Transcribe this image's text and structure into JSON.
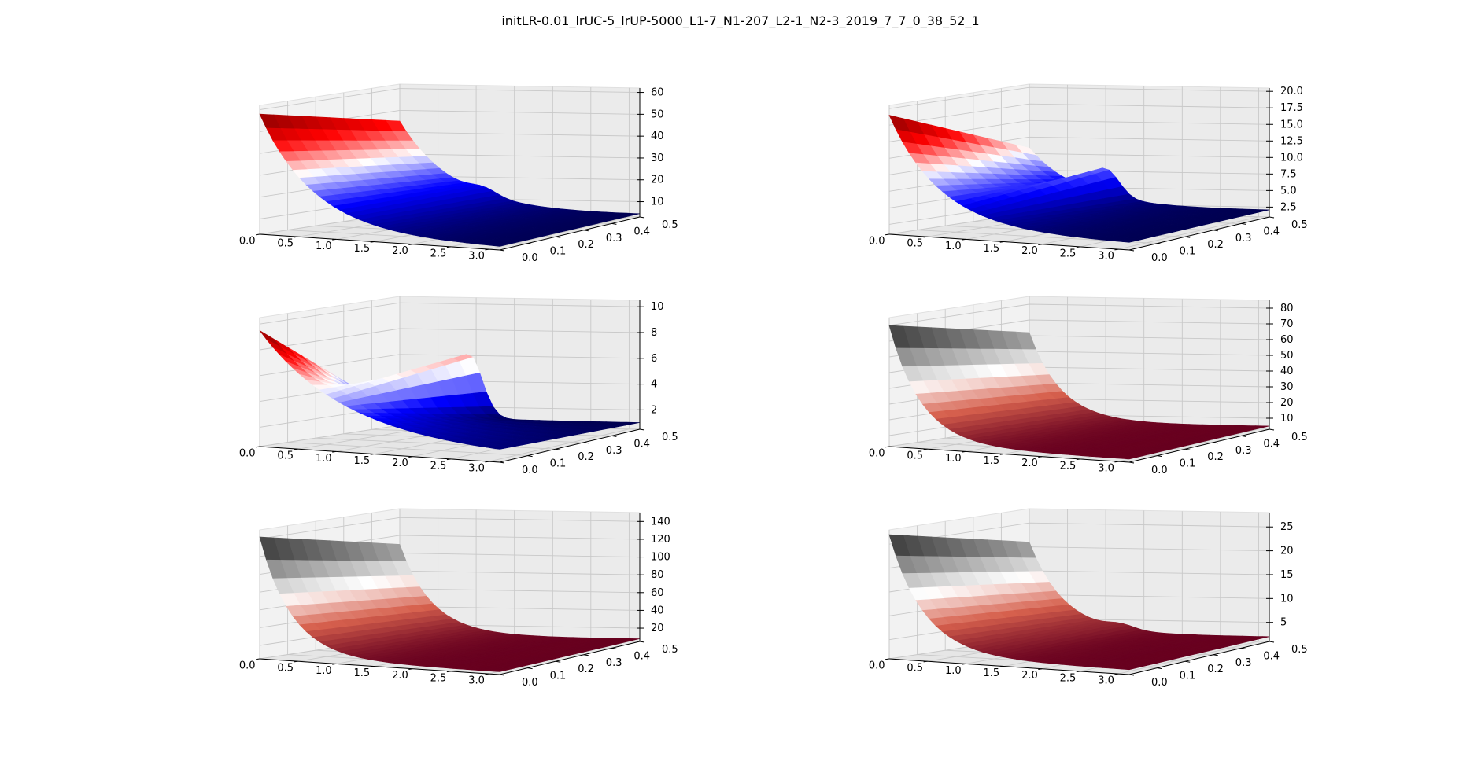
{
  "figure": {
    "title": "initLR-0.01_lrUC-5_lrUP-5000_L1-7_N1-207_L2-1_N2-3_2019_7_7_0_38_52_1"
  },
  "chart_data": [
    {
      "type": "surface3d",
      "id": "row1-left",
      "colormap": "seismic",
      "x_ticks": [
        "0.0",
        "0.5",
        "1.0",
        "1.5",
        "2.0",
        "2.5",
        "3.0"
      ],
      "y_ticks": [
        "0.0",
        "0.1",
        "0.2",
        "0.3",
        "0.4",
        "0.5"
      ],
      "z_ticks": [
        "10",
        "20",
        "30",
        "40",
        "50",
        "60"
      ],
      "xlim": [
        0,
        3.14
      ],
      "ylim": [
        0,
        0.5
      ],
      "zlim": [
        3,
        62
      ],
      "surface": {
        "peak": 58,
        "base": 4,
        "decay": 1.4,
        "y_effect": 0.3,
        "bump_x": 1.1,
        "bump_height": 3
      }
    },
    {
      "type": "surface3d",
      "id": "row1-right",
      "colormap": "seismic",
      "x_ticks": [
        "0.0",
        "0.5",
        "1.0",
        "1.5",
        "2.0",
        "2.5",
        "3.0"
      ],
      "y_ticks": [
        "0.0",
        "0.1",
        "0.2",
        "0.3",
        "0.4",
        "0.5"
      ],
      "z_ticks": [
        "2.5",
        "5.0",
        "7.5",
        "10.0",
        "12.5",
        "15.0",
        "17.5",
        "20.0"
      ],
      "xlim": [
        0,
        3.14
      ],
      "ylim": [
        0,
        0.5
      ],
      "zlim": [
        1,
        20.5
      ],
      "surface": {
        "peak": 19,
        "base": 2,
        "decay": 1.5,
        "y_effect": 0.6,
        "bump_x": 1.0,
        "bump_height": 4
      }
    },
    {
      "type": "surface3d",
      "id": "row2-left",
      "colormap": "seismic",
      "x_ticks": [
        "0.0",
        "0.5",
        "1.0",
        "1.5",
        "2.0",
        "2.5",
        "3.0"
      ],
      "y_ticks": [
        "0.0",
        "0.1",
        "0.2",
        "0.3",
        "0.4",
        "0.5"
      ],
      "z_ticks": [
        "2",
        "4",
        "6",
        "8",
        "10"
      ],
      "xlim": [
        0,
        3.14
      ],
      "ylim": [
        0,
        0.5
      ],
      "zlim": [
        0.5,
        10.5
      ],
      "surface": {
        "peak": 9.5,
        "base": 1,
        "decay": 0.9,
        "y_effect": 1.2,
        "bump_x": 0.9,
        "bump_height": 5
      }
    },
    {
      "type": "surface3d",
      "id": "row2-right",
      "colormap": "RdGy",
      "x_ticks": [
        "0.0",
        "0.5",
        "1.0",
        "1.5",
        "2.0",
        "2.5",
        "3.0"
      ],
      "y_ticks": [
        "0.0",
        "0.1",
        "0.2",
        "0.3",
        "0.4",
        "0.5"
      ],
      "z_ticks": [
        "10",
        "20",
        "30",
        "40",
        "50",
        "60",
        "70",
        "80"
      ],
      "xlim": [
        0,
        3.14
      ],
      "ylim": [
        0,
        0.5
      ],
      "zlim": [
        3,
        85
      ],
      "surface": {
        "peak": 80,
        "base": 5,
        "decay": 2.4,
        "y_effect": 0.3,
        "bump_x": 1.2,
        "bump_height": 0
      }
    },
    {
      "type": "surface3d",
      "id": "row3-left",
      "colormap": "RdGy",
      "x_ticks": [
        "0.0",
        "0.5",
        "1.0",
        "1.5",
        "2.0",
        "2.5",
        "3.0"
      ],
      "y_ticks": [
        "0.0",
        "0.1",
        "0.2",
        "0.3",
        "0.4",
        "0.5"
      ],
      "z_ticks": [
        "20",
        "40",
        "60",
        "80",
        "100",
        "120",
        "140"
      ],
      "xlim": [
        0,
        3.14
      ],
      "ylim": [
        0,
        0.5
      ],
      "zlim": [
        5,
        150
      ],
      "surface": {
        "peak": 142,
        "base": 8,
        "decay": 2.4,
        "y_effect": 0.3,
        "bump_x": 1.2,
        "bump_height": 0
      }
    },
    {
      "type": "surface3d",
      "id": "row3-right",
      "colormap": "RdGy",
      "x_ticks": [
        "0.0",
        "0.5",
        "1.0",
        "1.5",
        "2.0",
        "2.5",
        "3.0"
      ],
      "y_ticks": [
        "0.0",
        "0.1",
        "0.2",
        "0.3",
        "0.4",
        "0.5"
      ],
      "z_ticks": [
        "5",
        "10",
        "15",
        "20",
        "25"
      ],
      "xlim": [
        0,
        3.14
      ],
      "ylim": [
        0,
        0.5
      ],
      "zlim": [
        1,
        28
      ],
      "surface": {
        "peak": 27,
        "base": 2,
        "decay": 2.2,
        "y_effect": 0.3,
        "bump_x": 1.2,
        "bump_height": 1
      }
    }
  ]
}
